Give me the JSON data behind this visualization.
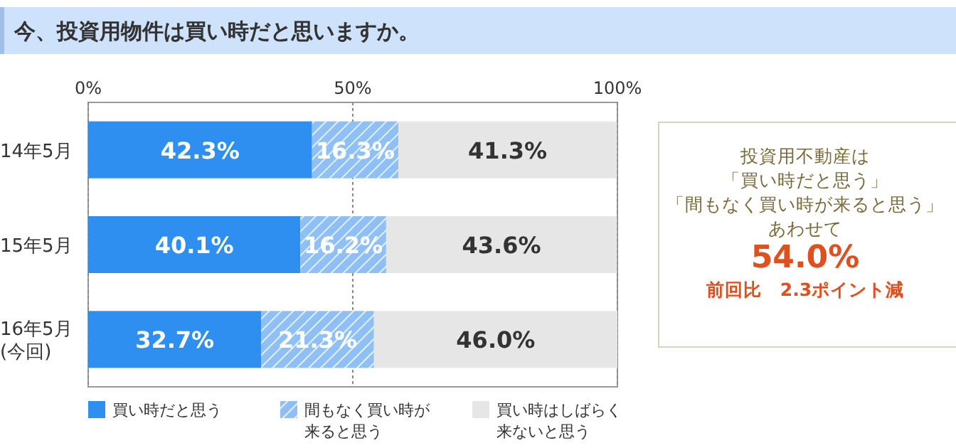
{
  "chart_data": {
    "type": "bar",
    "orientation": "horizontal",
    "stacked": true,
    "title": "今、投資用物件は買い時だと思いますか。",
    "categories": [
      "14年5月",
      "15年5月",
      "16年5月\n(今回)"
    ],
    "series": [
      {
        "name": "買い時だと思う",
        "color": "#2e8ff0",
        "values": [
          42.3,
          40.1,
          32.7
        ],
        "value_labels": [
          "42.3%",
          "40.1%",
          "32.7%"
        ]
      },
      {
        "name": "間もなく買い時が来ると思う",
        "color": "#8fc0f5",
        "values": [
          16.3,
          16.2,
          21.3
        ],
        "value_labels": [
          "16.3%",
          "16.2%",
          "21.3%"
        ]
      },
      {
        "name": "買い時はしばらく来ないと思う",
        "color": "#e6e6e6",
        "values": [
          41.3,
          43.6,
          46.0
        ],
        "value_labels": [
          "41.3%",
          "43.6%",
          "46.0%"
        ]
      }
    ],
    "xlim": [
      0,
      100
    ],
    "xticks": [
      {
        "value": 0,
        "label": "0%"
      },
      {
        "value": 50,
        "label": "50%"
      },
      {
        "value": 100,
        "label": "100%"
      }
    ],
    "grid": "x",
    "legend": "bottom",
    "annotations": [
      "投資用不動産は",
      "「買い時だと思う」",
      "「間もなく買い時が来ると思う」",
      "あわせて",
      "54.0%",
      "前回比　2.3ポイント減"
    ]
  }
}
